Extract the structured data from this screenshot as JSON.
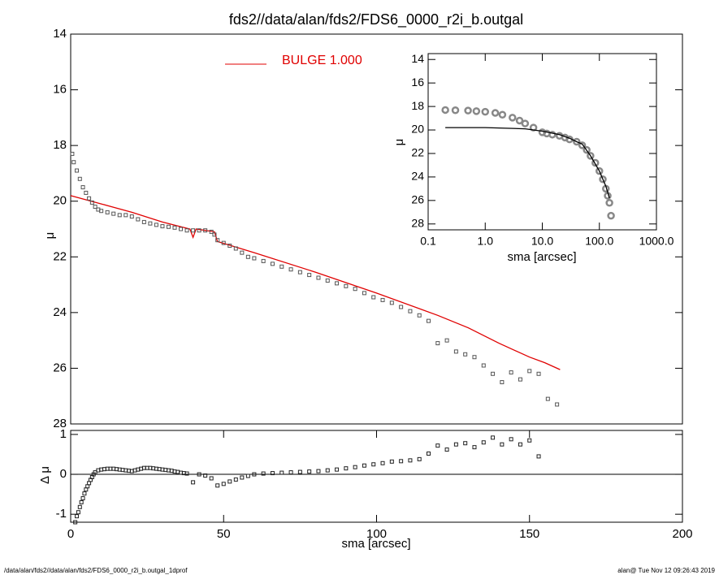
{
  "chart_data": [
    {
      "type": "scatter",
      "title": "fds2//data/alan/fds2/FDS6_0000_r2i_b.outgal",
      "ylabel": "μ",
      "xlim": [
        0,
        200
      ],
      "ylim": [
        28,
        14
      ],
      "yticks": [
        14,
        16,
        18,
        20,
        22,
        24,
        26,
        28
      ],
      "legend": "upper center",
      "series": [
        {
          "name": "BULGE  1.000",
          "color": "#e00000",
          "style": "line",
          "x": [
            0,
            10,
            20,
            30,
            39,
            40,
            41,
            47,
            48,
            60,
            80,
            100,
            120,
            130,
            140,
            150,
            155,
            160
          ],
          "values": [
            19.8,
            20.1,
            20.4,
            20.75,
            21.0,
            21.3,
            21.0,
            21.1,
            21.45,
            21.85,
            22.55,
            23.3,
            24.1,
            24.55,
            25.1,
            25.6,
            25.8,
            26.05
          ]
        },
        {
          "color": "#555555",
          "style": "square",
          "x": [
            0.5,
            1,
            2,
            3,
            4,
            5,
            6,
            7,
            8,
            9,
            10,
            12,
            14,
            16,
            18,
            20,
            22,
            24,
            26,
            28,
            30,
            32,
            34,
            36,
            38,
            40,
            42,
            44,
            46,
            47,
            48,
            50,
            52,
            54,
            56,
            58,
            60,
            63,
            66,
            69,
            72,
            75,
            78,
            81,
            84,
            87,
            90,
            93,
            96,
            99,
            102,
            105,
            108,
            111,
            114,
            117,
            120,
            123,
            126,
            129,
            132,
            135,
            138,
            141,
            144,
            147,
            150,
            153,
            156,
            159
          ],
          "values": [
            18.3,
            18.6,
            18.9,
            19.2,
            19.5,
            19.7,
            19.9,
            20.05,
            20.2,
            20.3,
            20.35,
            20.4,
            20.45,
            20.5,
            20.5,
            20.55,
            20.65,
            20.75,
            20.8,
            20.85,
            20.9,
            20.92,
            20.95,
            21.0,
            21.05,
            21.05,
            21.05,
            21.05,
            21.1,
            21.2,
            21.4,
            21.5,
            21.6,
            21.7,
            21.85,
            22.0,
            22.05,
            22.15,
            22.25,
            22.35,
            22.45,
            22.55,
            22.65,
            22.75,
            22.85,
            22.95,
            23.05,
            23.15,
            23.3,
            23.45,
            23.55,
            23.65,
            23.8,
            23.95,
            24.1,
            24.3,
            25.1,
            25.0,
            25.4,
            25.5,
            25.6,
            25.9,
            26.2,
            26.5,
            26.15,
            26.4,
            26.1,
            26.2,
            27.1,
            27.3
          ]
        }
      ]
    },
    {
      "type": "scatter",
      "ylabel": "Δ μ",
      "xlabel": "sma [arcsec]",
      "xlim": [
        0,
        200
      ],
      "ylim": [
        -1.2,
        1.1
      ],
      "xticks": [
        0,
        50,
        100,
        150,
        200
      ],
      "yticks": [
        -1,
        0,
        1
      ],
      "zero_line": true,
      "series": [
        {
          "color": "#222222",
          "style": "square",
          "x": [
            1.5,
            2,
            2.5,
            3,
            3.5,
            4,
            4.5,
            5,
            5.5,
            6,
            6.5,
            7,
            7.5,
            8,
            9,
            10,
            11,
            12,
            13,
            14,
            15,
            16,
            17,
            18,
            19,
            20,
            21,
            22,
            23,
            24,
            25,
            26,
            27,
            28,
            29,
            30,
            31,
            32,
            33,
            34,
            35,
            36,
            37,
            38,
            40,
            42,
            44,
            46,
            48,
            50,
            52,
            54,
            56,
            58,
            60,
            63,
            66,
            69,
            72,
            75,
            78,
            81,
            84,
            87,
            90,
            93,
            96,
            99,
            102,
            105,
            108,
            111,
            114,
            117,
            120,
            123,
            126,
            129,
            132,
            135,
            138,
            141,
            144,
            147,
            150,
            153
          ],
          "values": [
            -1.2,
            -1.05,
            -0.95,
            -0.82,
            -0.7,
            -0.6,
            -0.48,
            -0.38,
            -0.3,
            -0.22,
            -0.14,
            -0.07,
            0.0,
            0.05,
            0.1,
            0.12,
            0.13,
            0.14,
            0.14,
            0.14,
            0.13,
            0.12,
            0.11,
            0.1,
            0.09,
            0.08,
            0.1,
            0.12,
            0.14,
            0.16,
            0.16,
            0.16,
            0.15,
            0.14,
            0.13,
            0.12,
            0.11,
            0.1,
            0.09,
            0.07,
            0.06,
            0.04,
            0.03,
            0.02,
            -0.2,
            0.0,
            -0.03,
            -0.1,
            -0.28,
            -0.24,
            -0.18,
            -0.13,
            -0.08,
            -0.04,
            0.0,
            0.02,
            0.03,
            0.04,
            0.05,
            0.06,
            0.07,
            0.08,
            0.1,
            0.12,
            0.15,
            0.18,
            0.22,
            0.25,
            0.28,
            0.32,
            0.33,
            0.35,
            0.38,
            0.52,
            0.72,
            0.62,
            0.75,
            0.78,
            0.68,
            0.8,
            0.92,
            0.75,
            0.88,
            0.75,
            0.85,
            0.45
          ]
        }
      ]
    },
    {
      "type": "scatter",
      "ylabel": "μ",
      "xlabel": "sma [arcsec]",
      "xlog": true,
      "xlim": [
        0.1,
        1000
      ],
      "ylim": [
        28.5,
        13.5
      ],
      "xticks": [
        {
          "value": 0.1,
          "label": "0.1"
        },
        {
          "value": 1,
          "label": "1.0"
        },
        {
          "value": 10,
          "label": "10.0"
        },
        {
          "value": 100,
          "label": "100.0"
        },
        {
          "value": 1000,
          "label": "1000.0"
        }
      ],
      "yticks": [
        14,
        16,
        18,
        20,
        22,
        24,
        26,
        28
      ],
      "series": [
        {
          "color": "#888888",
          "style": "circle",
          "x": [
            0.2,
            0.3,
            0.5,
            0.7,
            1,
            1.5,
            2,
            3,
            4,
            5,
            7,
            10,
            12,
            15,
            20,
            25,
            30,
            40,
            50,
            60,
            70,
            85,
            100,
            115,
            130,
            140,
            150,
            160
          ],
          "values": [
            18.3,
            18.32,
            18.35,
            18.4,
            18.45,
            18.55,
            18.7,
            18.95,
            19.2,
            19.45,
            19.8,
            20.2,
            20.3,
            20.4,
            20.5,
            20.65,
            20.8,
            21.0,
            21.3,
            21.7,
            22.2,
            22.8,
            23.5,
            24.2,
            25.0,
            25.6,
            26.2,
            27.3
          ]
        },
        {
          "color": "#000000",
          "style": "line",
          "x": [
            0.2,
            1,
            5,
            10,
            20,
            30,
            40,
            50,
            70,
            100,
            130,
            150
          ],
          "values": [
            19.8,
            19.8,
            19.9,
            20.1,
            20.4,
            20.7,
            21.0,
            21.2,
            22.2,
            23.5,
            24.8,
            25.8
          ]
        }
      ]
    }
  ],
  "footer": {
    "left": "/data/alan/fds2//data/alan/fds2/FDS6_0000_r2i_b.outgal_1dprof",
    "right": "alan@  Tue Nov 12 09:26:43 2019"
  }
}
